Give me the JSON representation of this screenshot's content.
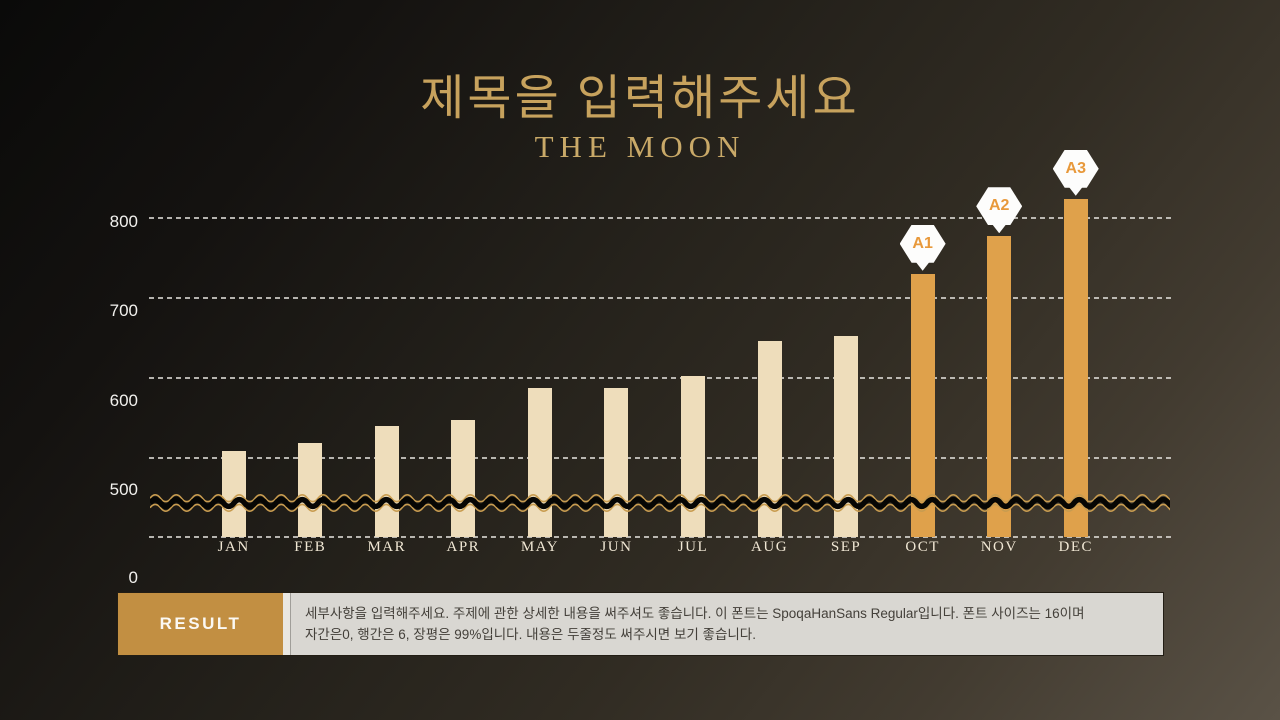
{
  "title": {
    "main": "제목을 입력해주세요",
    "subtitle": "THE MOON",
    "color": "#c7a25d",
    "subtitle_color": "#c9a968"
  },
  "chart_data": {
    "type": "bar",
    "categories": [
      "JAN",
      "FEB",
      "MAR",
      "APR",
      "MAY",
      "JUN",
      "JUL",
      "AUG",
      "SEP",
      "OCT",
      "NOV",
      "DEC"
    ],
    "values": [
      544,
      553,
      572,
      578,
      614,
      614,
      628,
      667,
      672,
      742,
      784,
      826
    ],
    "title": "",
    "xlabel": "",
    "ylabel": "",
    "yticks": [
      0,
      500,
      600,
      700,
      800
    ],
    "ylim": [
      0,
      860
    ],
    "grid": "dashed horizontal",
    "axis_break": "wavy break line below 500 between 0 and ~480",
    "highlight_from_index": 9,
    "badges": [
      {
        "label": "A1",
        "category": "OCT"
      },
      {
        "label": "A2",
        "category": "NOV"
      },
      {
        "label": "A3",
        "category": "DEC"
      }
    ],
    "colors": {
      "bar": "#eeddbb",
      "bar_highlight": "#dfa14b",
      "badge_bg": "#fdfdfc",
      "badge_text": "#e8993b",
      "wave_gold": "#c89c50",
      "wave_black": "#060604"
    }
  },
  "result": {
    "label": "RESULT",
    "label_bg": "#c28f42",
    "panel_bg": "#d9d7d2",
    "lines": [
      "세부사항을 입력해주세요. 주제에 관한 상세한 내용을 써주셔도 좋습니다. 이 폰트는 SpoqaHanSans Regular입니다. 폰트 사이즈는 16이며",
      "자간은0, 행간은 6, 장평은 99%입니다. 내용은 두줄정도 써주시면 보기 좋습니다."
    ]
  }
}
